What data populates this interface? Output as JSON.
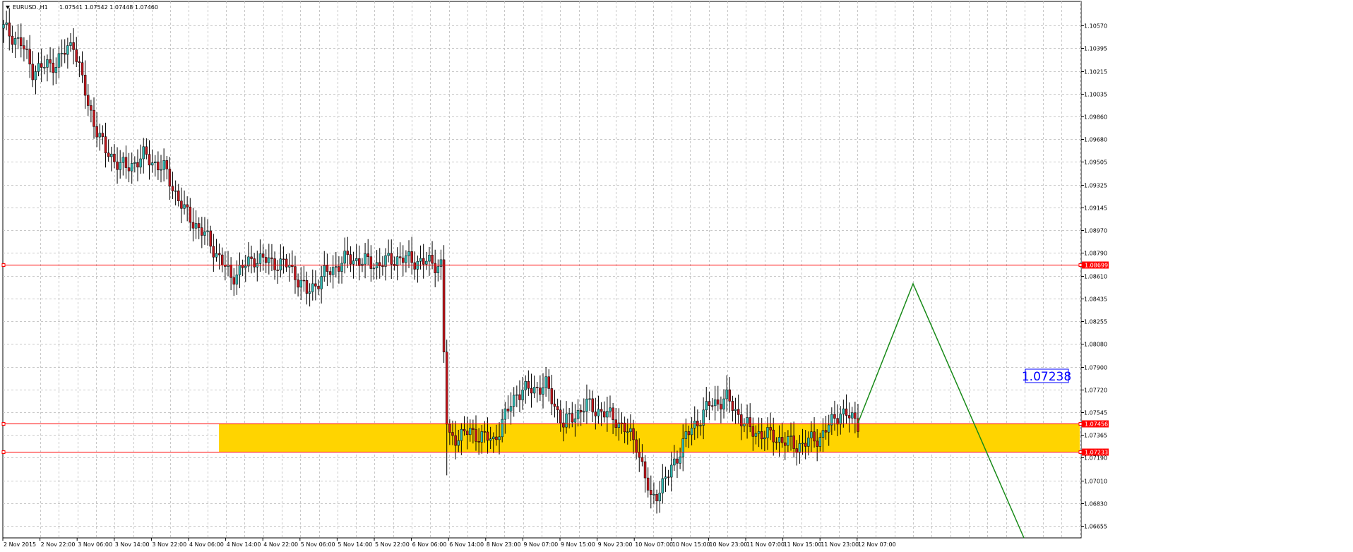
{
  "header": {
    "symbol_label": "EURUSD.,H1",
    "ohlc_label": "1.07541 1.07542 1.07448 1.07460"
  },
  "price_scale": {
    "labels": [
      "1.10570",
      "1.10395",
      "1.10215",
      "1.10035",
      "1.09860",
      "1.09680",
      "1.09505",
      "1.09325",
      "1.09145",
      "1.08970",
      "1.08790",
      "1.08610",
      "1.08435",
      "1.08255",
      "1.08080",
      "1.07900",
      "1.07720",
      "1.07545",
      "1.07365",
      "1.07190",
      "1.07010",
      "1.06830",
      "1.06655"
    ],
    "ylim": [
      1.0656,
      1.1076
    ]
  },
  "time_scale": {
    "labels": [
      "2 Nov 2015",
      "2 Nov 22:00",
      "3 Nov 06:00",
      "3 Nov 14:00",
      "3 Nov 22:00",
      "4 Nov 06:00",
      "4 Nov 14:00",
      "4 Nov 22:00",
      "5 Nov 06:00",
      "5 Nov 14:00",
      "5 Nov 22:00",
      "6 Nov 06:00",
      "6 Nov 14:00",
      "8 Nov 23:00",
      "9 Nov 07:00",
      "9 Nov 15:00",
      "9 Nov 23:00",
      "10 Nov 07:00",
      "10 Nov 15:00",
      "10 Nov 23:00",
      "11 Nov 07:00",
      "11 Nov 15:00",
      "11 Nov 23:00",
      "12 Nov 07:00"
    ]
  },
  "levels": {
    "resistance": "1.08699",
    "zone_top": "1.07456",
    "zone_bottom": "1.07233",
    "price_box": "1.07238"
  },
  "colors": {
    "bull": "#2fb6b0",
    "bear": "#c0161c",
    "wick": "#000000",
    "level_line": "#ff0000",
    "zone_fill": "#ffd400",
    "projection": "#188a18",
    "grid": "#c8c8c8",
    "price_box_text": "#0000ff"
  },
  "chart_data": {
    "type": "candlestick",
    "title": "EURUSD.,H1",
    "ylim": [
      1.0656,
      1.1076
    ],
    "horizontal_levels": [
      1.08699,
      1.07456,
      1.07233
    ],
    "zone": [
      1.07233,
      1.07456
    ],
    "projection_path": [
      1.0746,
      1.0855,
      1.0656
    ],
    "candles_summary": {
      "start_open": 1.1055,
      "end_close": 1.0746,
      "period_high": 1.1057,
      "period_low": 1.0677
    }
  }
}
